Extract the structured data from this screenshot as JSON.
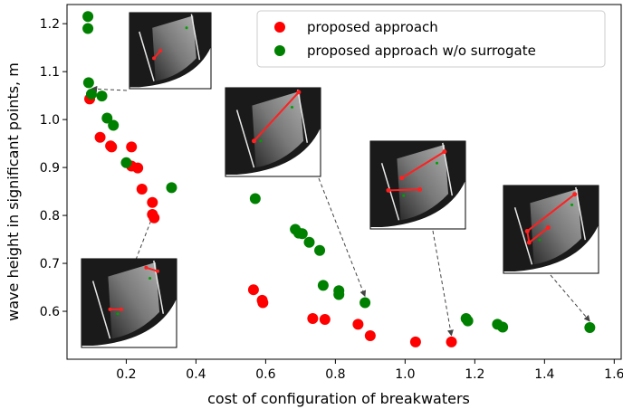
{
  "chart_data": {
    "type": "scatter",
    "title": "",
    "xlabel": "cost of configuration of breakwaters",
    "ylabel": "wave height in significant points, m",
    "xlim": [
      0.03,
      1.62
    ],
    "ylim": [
      0.5,
      1.24
    ],
    "xticks": [
      "0.2",
      "0.4",
      "0.6",
      "0.8",
      "1.0",
      "1.2",
      "1.4",
      "1.6"
    ],
    "yticks": [
      "0.6",
      "0.7",
      "0.8",
      "0.9",
      "1.0",
      "1.1",
      "1.2"
    ],
    "grid": false,
    "legend_position": "top-right",
    "series": [
      {
        "name": "proposed approach",
        "color": "#ff0000",
        "points": [
          {
            "x": 0.095,
            "y": 1.043
          },
          {
            "x": 0.125,
            "y": 0.963
          },
          {
            "x": 0.155,
            "y": 0.945
          },
          {
            "x": 0.158,
            "y": 0.943
          },
          {
            "x": 0.215,
            "y": 0.943
          },
          {
            "x": 0.215,
            "y": 0.903
          },
          {
            "x": 0.233,
            "y": 0.899
          },
          {
            "x": 0.245,
            "y": 0.855
          },
          {
            "x": 0.275,
            "y": 0.827
          },
          {
            "x": 0.275,
            "y": 0.802
          },
          {
            "x": 0.28,
            "y": 0.795
          },
          {
            "x": 0.565,
            "y": 0.645
          },
          {
            "x": 0.59,
            "y": 0.623
          },
          {
            "x": 0.592,
            "y": 0.618
          },
          {
            "x": 0.735,
            "y": 0.585
          },
          {
            "x": 0.77,
            "y": 0.583
          },
          {
            "x": 0.865,
            "y": 0.573
          },
          {
            "x": 0.9,
            "y": 0.549
          },
          {
            "x": 1.03,
            "y": 0.536
          },
          {
            "x": 1.133,
            "y": 0.536
          }
        ]
      },
      {
        "name": "proposed approach w/o  surrogate",
        "color": "#008000",
        "points": [
          {
            "x": 0.09,
            "y": 1.215
          },
          {
            "x": 0.09,
            "y": 1.19
          },
          {
            "x": 0.092,
            "y": 1.077
          },
          {
            "x": 0.1,
            "y": 1.053
          },
          {
            "x": 0.13,
            "y": 1.049
          },
          {
            "x": 0.145,
            "y": 1.003
          },
          {
            "x": 0.163,
            "y": 0.988
          },
          {
            "x": 0.2,
            "y": 0.91
          },
          {
            "x": 0.33,
            "y": 0.858
          },
          {
            "x": 0.57,
            "y": 0.835
          },
          {
            "x": 0.685,
            "y": 0.771
          },
          {
            "x": 0.695,
            "y": 0.763
          },
          {
            "x": 0.705,
            "y": 0.762
          },
          {
            "x": 0.725,
            "y": 0.744
          },
          {
            "x": 0.755,
            "y": 0.727
          },
          {
            "x": 0.765,
            "y": 0.654
          },
          {
            "x": 0.81,
            "y": 0.643
          },
          {
            "x": 0.81,
            "y": 0.635
          },
          {
            "x": 0.885,
            "y": 0.618
          },
          {
            "x": 1.175,
            "y": 0.585
          },
          {
            "x": 1.18,
            "y": 0.58
          },
          {
            "x": 1.265,
            "y": 0.573
          },
          {
            "x": 1.28,
            "y": 0.567
          },
          {
            "x": 1.53,
            "y": 0.566
          }
        ]
      }
    ],
    "insets": [
      {
        "name": "inset-1",
        "target": {
          "x": 0.1,
          "y": 1.053
        }
      },
      {
        "name": "inset-2",
        "target": {
          "x": 0.885,
          "y": 0.618
        }
      },
      {
        "name": "inset-3",
        "target": {
          "x": 1.133,
          "y": 0.536
        }
      },
      {
        "name": "inset-4",
        "target": {
          "x": 1.53,
          "y": 0.566
        }
      },
      {
        "name": "inset-5",
        "target": {
          "x": 0.28,
          "y": 0.795
        }
      }
    ]
  }
}
